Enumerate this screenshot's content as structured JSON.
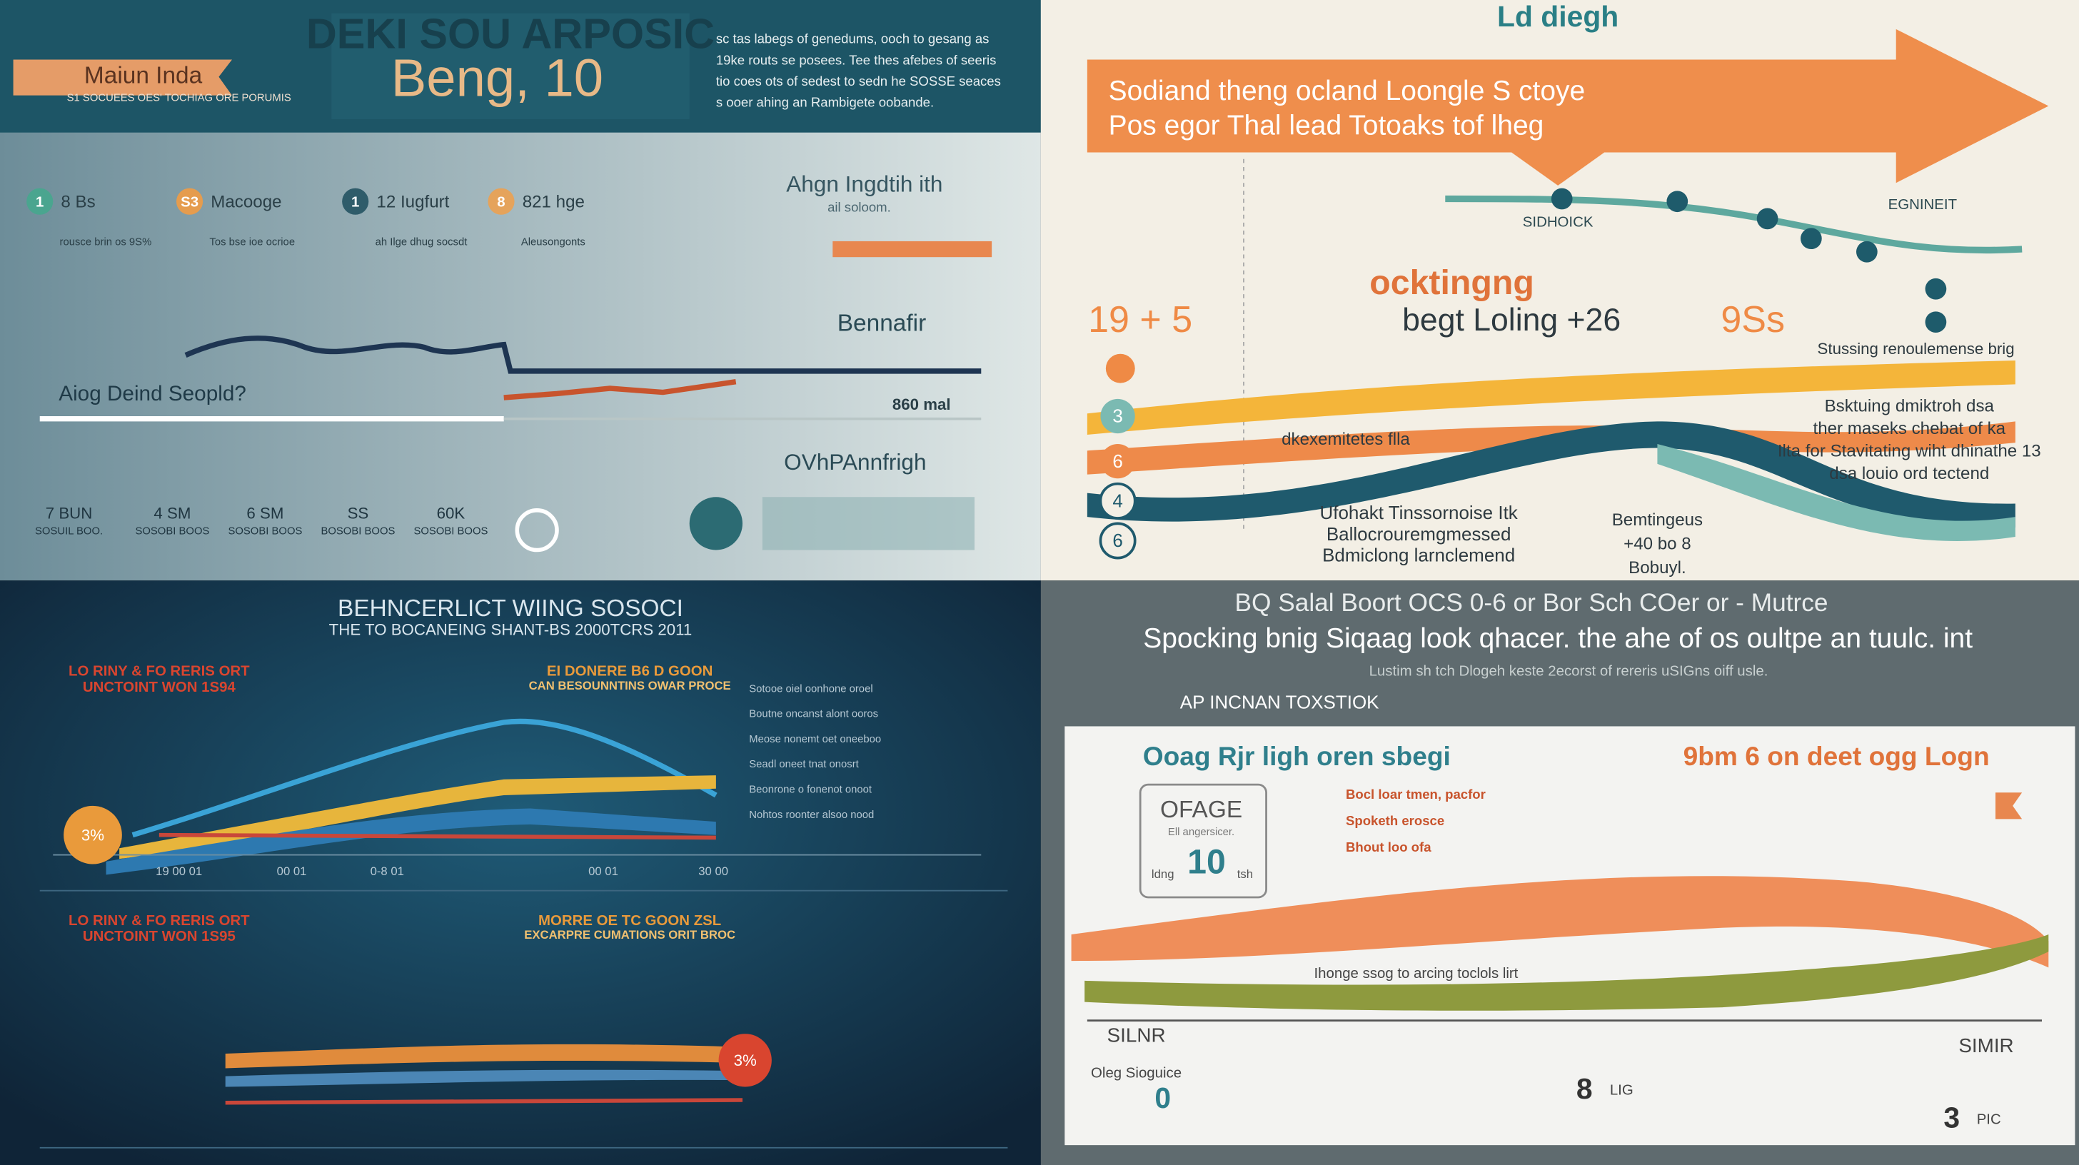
{
  "p1": {
    "title": "DEKI SOU ARPOSIC",
    "headline": "Beng, 10",
    "ribbon": "Maiun Inda",
    "ribbon_sub": "S1 SOCUEES OES' TOCHIAG ORE PORUMIS",
    "intro": [
      "sc tas labegs of genedums, ooch to gesang as",
      "19ke  routs se posees. Tee thes afebes of seeris",
      "tio  coes ots of sedest to sedn he SOSSE seaces",
      "s ooer ahing an Rambigete oobande."
    ],
    "steps": [
      {
        "num": "1",
        "label": "8 Bs"
      },
      {
        "num": "S3",
        "label": "Macooge"
      },
      {
        "num": "1",
        "label": "12 Iugfurt"
      },
      {
        "num": "8",
        "label": "821 hge"
      }
    ],
    "step_notes": [
      "rousce brin os 9S%",
      "Tos bse ioe ocrioe",
      "ah Ilge dhug socsdt",
      "Aleusongonts"
    ],
    "question": "Aiog Deind Seopld?",
    "heading": "Ahgn Ingdtih ith",
    "heading_sub": "ail soloom.",
    "callout": "Bennafir",
    "stat": "860 mal",
    "footer_title": "OVhPAnnfrigh",
    "stats": [
      "7 BUN",
      "4 SM",
      "6 SM",
      "SS",
      "60K"
    ],
    "stat_labels": [
      "SOSUIL BOO.",
      "SOSOBI BOOS",
      "SOSOBI BOOS",
      "BOSOBI BOOS",
      "SOSOBI BOOS"
    ]
  },
  "p2": {
    "title": "Ld diegh",
    "banner": [
      "Sodiand theng ocland Loongle S ctoye",
      "Pos egor Thal lead Totoaks tof lheg"
    ],
    "timeline_left": "SIDHOICK",
    "timeline_right": "EGNINEIT",
    "headline": [
      "ocktingng",
      "begt Loling +26"
    ],
    "big_left": "19 + 5",
    "big_right": "9Ss",
    "side_title": "Stussing renoulemense brig",
    "side_lines": [
      "Bsktuing  dmiktroh dsa",
      "ther maseks chebat of ka",
      "Ilta for Stavitating wiht dhinathe 13",
      "dsa louio ord tectend"
    ],
    "band_label": "dkexemitetes flla",
    "notes": [
      "Ufohakt Tinssornoise Itk",
      "Ballocrouremgmessed",
      "Bdmiclong larnclemend"
    ],
    "bottom_right": [
      "Bemtingeus",
      "+40 bo 8",
      "Bobuyl."
    ],
    "markers": [
      "3",
      "6",
      "4",
      "6"
    ]
  },
  "p3": {
    "title": "BEHNCERLICT WIING SOSOCI",
    "subtitle": "THE TO BOCANEING SHANT-BS 2000TCRS 2011",
    "charts": [
      {
        "heading": "LO RINY & FO RERIS ORT",
        "subheading": "UNCTOINT WON 1S94",
        "right_heading": "EI DONERE B6 D GOON",
        "right_sub": "CAN BESOUNNTINS OWAR PROCE",
        "badge": "3%"
      },
      {
        "heading": "LO RINY & FO RERIS ORT",
        "subheading": "UNCTOINT WON 1S95",
        "right_heading": "MORRE OE TC GOON ZSL",
        "right_sub": "EXCARPRE CUMATIONS ORIT BROC",
        "badge": "3%"
      }
    ],
    "axis": [
      "19 00 01",
      "00 01",
      "0-8 01",
      "00 01",
      "30 00"
    ],
    "notes": [
      "Sotooe oiel oonhone oroel",
      "Boutne oncanst alont ooros",
      "Meose nonemt oet oneeboo",
      "Seadl oneet tnat onosrt",
      "Beonrone o fonenot onoot",
      "Nohtos roonter alsoo nood"
    ]
  },
  "p4": {
    "banner": [
      "BQ Salal Boort OCS 0-6 or Bor Sch COer or - Mutrce",
      "Spocking bnig Siqaag look qhacer. the ahe of os oultpe an tuulc. int",
      "Lustim sh tch Dlogeh keste 2ecorst of rereris uSIGns oiff usle."
    ],
    "section": "AP INCNAN TOXSTIOK",
    "left_heading": "Ooag Rjr ligh oren sbegi",
    "right_heading": "9bm 6 on deet ogg Logn",
    "box": {
      "title": "OFAGE",
      "sub": "Ell angersicer.",
      "value": "10",
      "left": "ldng",
      "right": "tsh"
    },
    "notes": [
      "Bocl loar tmen, pacfor",
      "Spoketh erosce",
      "Bhout loo ofa"
    ],
    "band_label": "Ihonge ssog to arcing toclols lirt",
    "left_foot": "SILNR",
    "right_foot": "SIMIR",
    "stats": [
      {
        "value": "0",
        "label": "Oleg Sioguice"
      },
      {
        "value": "8",
        "label": "LIG"
      },
      {
        "value": "3",
        "label": "PIC"
      }
    ]
  }
}
